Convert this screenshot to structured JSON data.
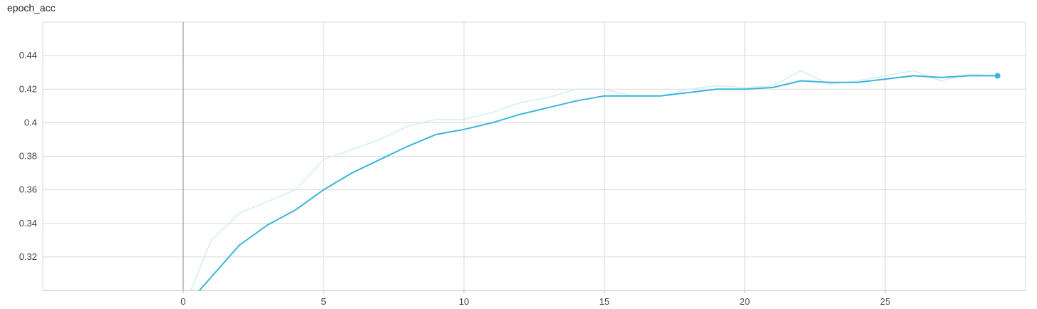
{
  "chart_data": {
    "type": "line",
    "title": "epoch_acc",
    "xlabel": "",
    "ylabel": "",
    "xlim": [
      -5,
      30
    ],
    "ylim": [
      0.3,
      0.46
    ],
    "x_ticks": [
      0,
      5,
      10,
      15,
      20,
      25
    ],
    "y_ticks": [
      0.32,
      0.34,
      0.36,
      0.38,
      0.4,
      0.42,
      0.44
    ],
    "y_tick_labels": [
      "0.32",
      "0.34",
      "0.36",
      "0.38",
      "0.4",
      "0.42",
      "0.44"
    ],
    "grid": true,
    "zero_axis_color": "#999999",
    "series": [
      {
        "role": "raw",
        "color": "#d0eef7",
        "x": [
          0,
          1,
          2,
          3,
          4,
          5,
          6,
          7,
          8,
          9,
          10,
          11,
          12,
          13,
          14,
          15,
          16,
          17,
          18,
          19,
          20,
          21,
          22,
          23,
          24,
          25,
          26,
          27,
          28,
          29
        ],
        "y": [
          0.289,
          0.33,
          0.346,
          0.353,
          0.36,
          0.378,
          0.384,
          0.39,
          0.398,
          0.402,
          0.402,
          0.406,
          0.412,
          0.415,
          0.42,
          0.42,
          0.416,
          0.416,
          0.42,
          0.422,
          0.421,
          0.422,
          0.431,
          0.423,
          0.425,
          0.428,
          0.431,
          0.425,
          0.429,
          0.428
        ]
      },
      {
        "role": "smoothed",
        "color": "#3cb4dc",
        "x": [
          0,
          1,
          2,
          3,
          4,
          5,
          6,
          7,
          8,
          9,
          10,
          11,
          12,
          13,
          14,
          15,
          16,
          17,
          18,
          19,
          20,
          21,
          22,
          23,
          24,
          25,
          26,
          27,
          28,
          29
        ],
        "y": [
          0.289,
          0.308,
          0.327,
          0.339,
          0.348,
          0.36,
          0.37,
          0.378,
          0.386,
          0.393,
          0.396,
          0.4,
          0.405,
          0.409,
          0.413,
          0.416,
          0.416,
          0.416,
          0.418,
          0.42,
          0.42,
          0.421,
          0.425,
          0.424,
          0.424,
          0.426,
          0.428,
          0.427,
          0.428,
          0.428
        ]
      }
    ]
  }
}
